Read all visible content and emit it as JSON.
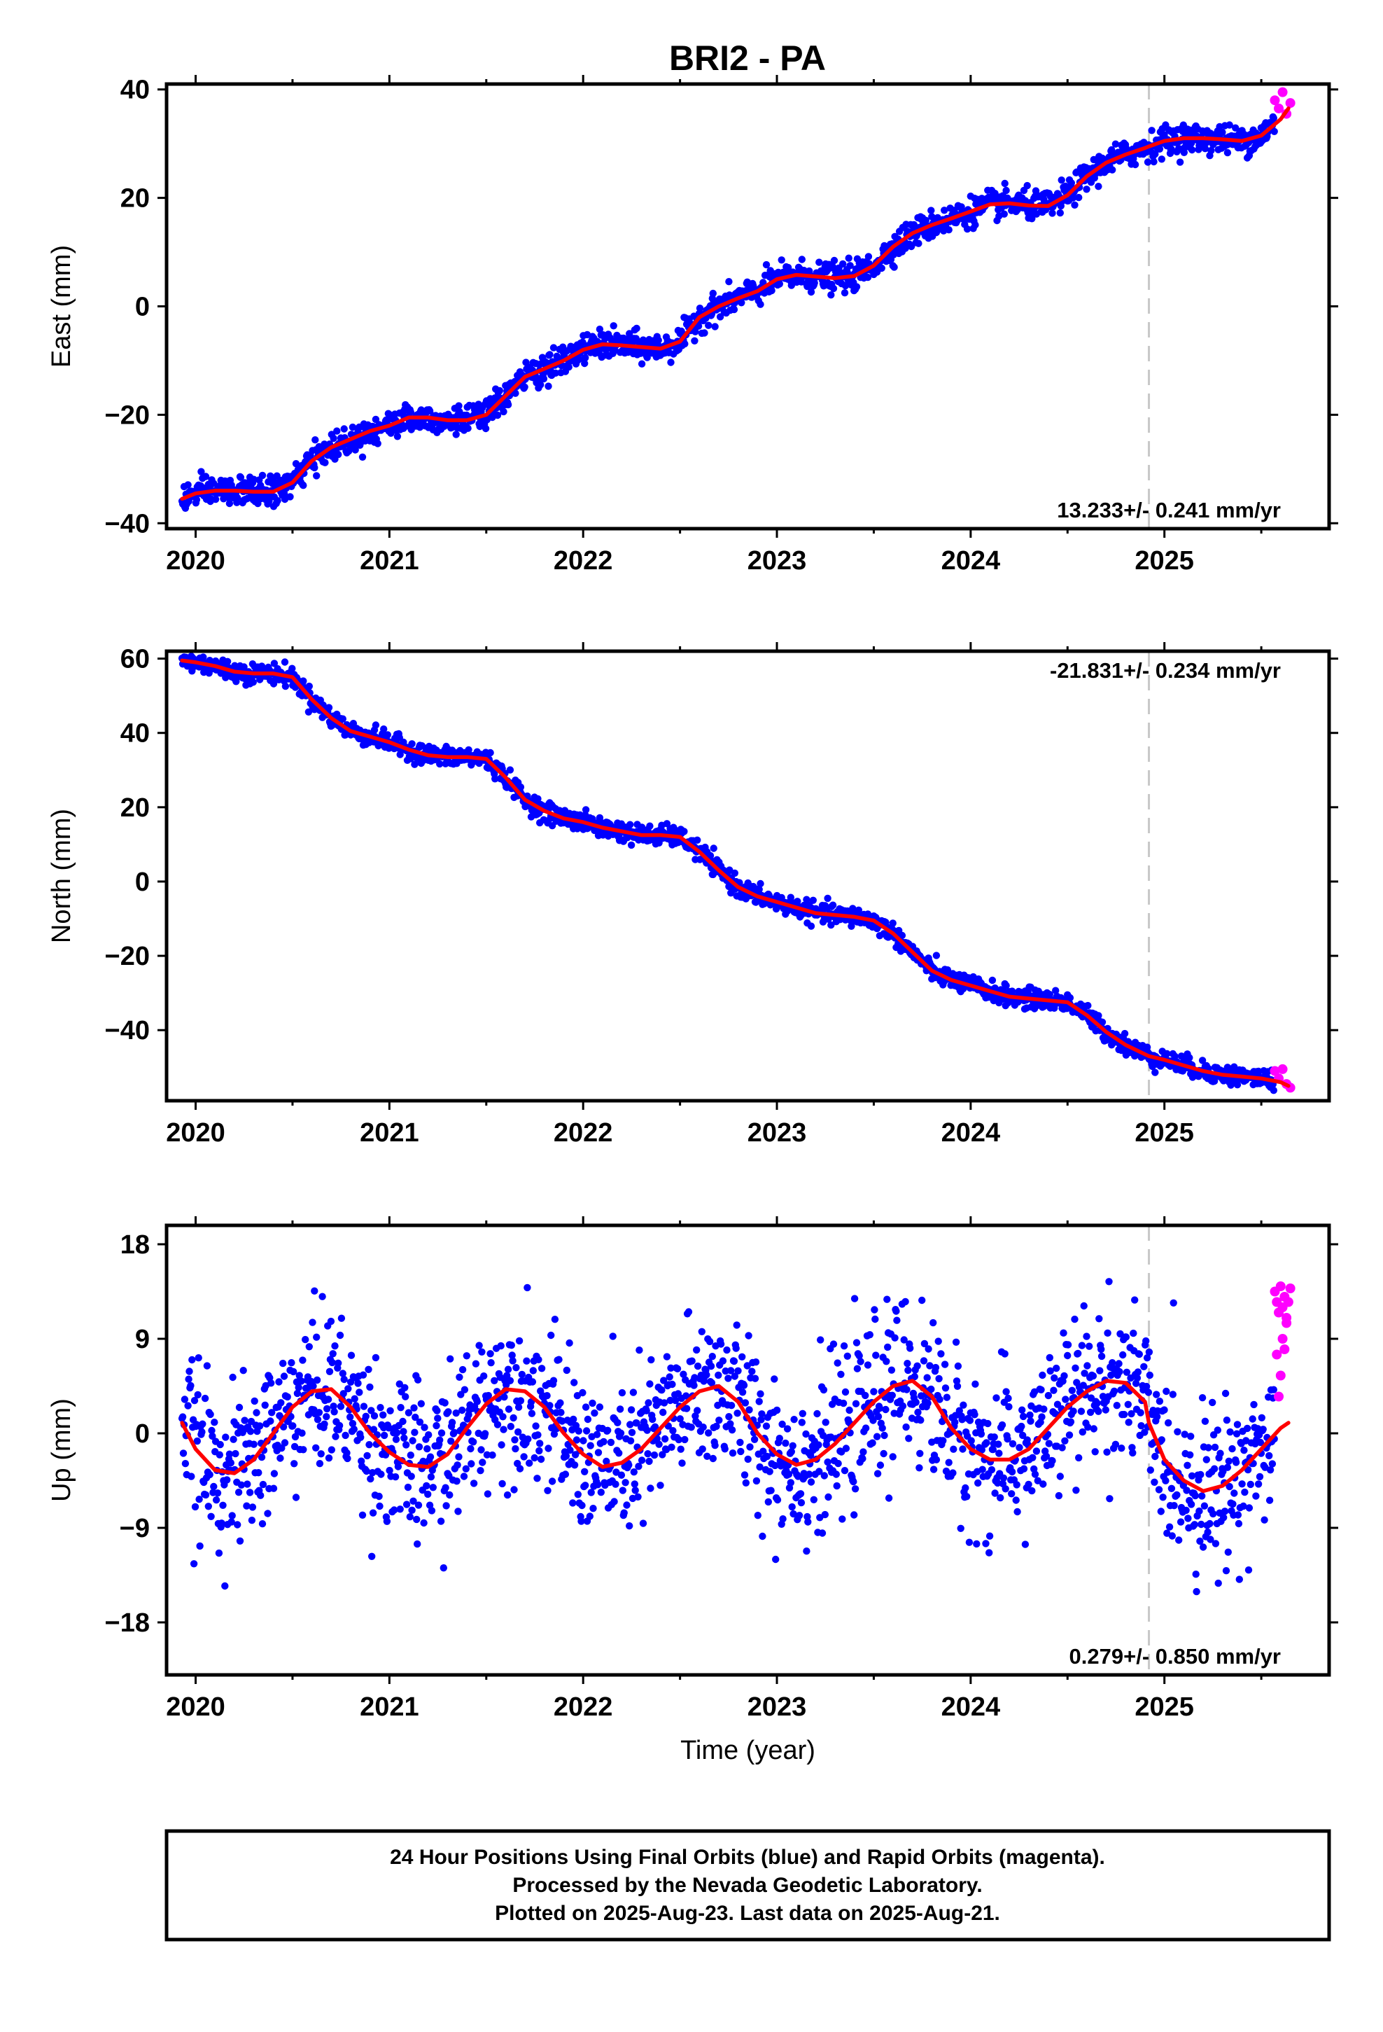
{
  "title": "BRI2 - PA",
  "colors": {
    "final": "#0000ff",
    "rapid": "#ff00ff",
    "model": "#ff0000",
    "break_line": "#c8c8c8"
  },
  "break_epoch": 2024.92,
  "chart_data": [
    {
      "type": "scatter",
      "ylabel": "East (mm)",
      "xlim": [
        2019.85,
        2025.85
      ],
      "ylim": [
        -41,
        41
      ],
      "yticks": [
        -40,
        -20,
        0,
        20,
        40
      ],
      "ytick_labels": [
        "−40",
        "−20",
        "0",
        "20",
        "40"
      ],
      "xticks": [
        2020,
        2021,
        2022,
        2023,
        2024,
        2025
      ],
      "xtick_labels": [
        "2020",
        "2021",
        "2022",
        "2023",
        "2024",
        "2025"
      ],
      "rate_label": "13.233+/- 0.241 mm/yr",
      "rate_position": "bottom-right",
      "model": {
        "x": [
          2019.93,
          2020.0,
          2020.1,
          2020.2,
          2020.3,
          2020.4,
          2020.5,
          2020.6,
          2020.7,
          2020.8,
          2020.9,
          2021.0,
          2021.1,
          2021.2,
          2021.3,
          2021.4,
          2021.5,
          2021.6,
          2021.7,
          2021.8,
          2021.9,
          2022.0,
          2022.1,
          2022.2,
          2022.3,
          2022.4,
          2022.5,
          2022.6,
          2022.7,
          2022.8,
          2022.9,
          2023.0,
          2023.1,
          2023.2,
          2023.3,
          2023.4,
          2023.5,
          2023.6,
          2023.7,
          2023.8,
          2023.9,
          2024.0,
          2024.1,
          2024.2,
          2024.3,
          2024.4,
          2024.5,
          2024.6,
          2024.7,
          2024.8,
          2024.9,
          2024.92,
          2025.0,
          2025.1,
          2025.2,
          2025.3,
          2025.4,
          2025.5,
          2025.6,
          2025.64
        ],
        "y": [
          -35.5,
          -34.5,
          -34.0,
          -34.0,
          -34.2,
          -34.2,
          -32.5,
          -28.5,
          -26.0,
          -24.5,
          -23.0,
          -22.0,
          -20.5,
          -20.5,
          -21.0,
          -21.0,
          -20.0,
          -16.5,
          -13.0,
          -11.5,
          -10.0,
          -8.0,
          -7.0,
          -7.2,
          -7.5,
          -7.8,
          -6.5,
          -2.0,
          0.0,
          1.5,
          2.8,
          5.0,
          5.8,
          5.5,
          5.2,
          5.6,
          7.5,
          11.0,
          13.5,
          15.0,
          16.2,
          17.5,
          18.8,
          19.0,
          18.6,
          18.5,
          20.5,
          24.0,
          26.5,
          28.0,
          29.2,
          29.5,
          30.5,
          31.0,
          31.0,
          30.8,
          30.5,
          31.5,
          34.5,
          36.5
        ]
      },
      "rapid": {
        "x": [
          2025.57,
          2025.59,
          2025.61,
          2025.63,
          2025.65
        ],
        "y": [
          38,
          36.5,
          39.5,
          35.5,
          37.5
        ]
      }
    },
    {
      "type": "scatter",
      "ylabel": "North (mm)",
      "xlim": [
        2019.85,
        2025.85
      ],
      "ylim": [
        -59,
        62
      ],
      "yticks": [
        -40,
        -20,
        0,
        20,
        40,
        60
      ],
      "ytick_labels": [
        "−40",
        "−20",
        "0",
        "20",
        "40",
        "60"
      ],
      "xticks": [
        2020,
        2021,
        2022,
        2023,
        2024,
        2025
      ],
      "xtick_labels": [
        "2020",
        "2021",
        "2022",
        "2023",
        "2024",
        "2025"
      ],
      "rate_label": "-21.831+/- 0.234 mm/yr",
      "rate_position": "top-right",
      "model": {
        "x": [
          2019.93,
          2020.0,
          2020.1,
          2020.2,
          2020.3,
          2020.4,
          2020.5,
          2020.6,
          2020.7,
          2020.8,
          2020.9,
          2021.0,
          2021.1,
          2021.2,
          2021.3,
          2021.4,
          2021.5,
          2021.6,
          2021.7,
          2021.8,
          2021.9,
          2022.0,
          2022.1,
          2022.2,
          2022.3,
          2022.4,
          2022.5,
          2022.6,
          2022.7,
          2022.8,
          2022.9,
          2023.0,
          2023.1,
          2023.2,
          2023.3,
          2023.4,
          2023.5,
          2023.6,
          2023.7,
          2023.8,
          2023.9,
          2024.0,
          2024.1,
          2024.2,
          2024.3,
          2024.4,
          2024.5,
          2024.6,
          2024.7,
          2024.8,
          2024.9,
          2024.92,
          2025.0,
          2025.1,
          2025.2,
          2025.3,
          2025.4,
          2025.5,
          2025.6,
          2025.64
        ],
        "y": [
          59.5,
          59.0,
          58.0,
          56.5,
          56.0,
          56.0,
          55.0,
          49.0,
          44.0,
          40.5,
          39.0,
          37.5,
          35.5,
          34.0,
          33.5,
          33.5,
          33.0,
          28.0,
          22.0,
          19.0,
          17.0,
          16.0,
          14.5,
          13.5,
          12.5,
          12.5,
          12.0,
          8.0,
          3.0,
          -1.5,
          -4.0,
          -5.5,
          -7.0,
          -8.5,
          -9.0,
          -9.5,
          -10.5,
          -14.0,
          -19.0,
          -24.0,
          -26.5,
          -28.0,
          -29.5,
          -31.0,
          -31.5,
          -32.0,
          -32.5,
          -36.0,
          -40.5,
          -44.0,
          -46.5,
          -47.0,
          -48.0,
          -49.5,
          -51.0,
          -52.0,
          -52.5,
          -53.0,
          -54.0,
          -55.0
        ]
      },
      "rapid": {
        "x": [
          2025.57,
          2025.59,
          2025.61,
          2025.63,
          2025.65
        ],
        "y": [
          -51,
          -53,
          -50.5,
          -54.5,
          -55.5
        ]
      }
    },
    {
      "type": "scatter",
      "ylabel": "Up (mm)",
      "xlabel": "Time (year)",
      "xlim": [
        2019.85,
        2025.85
      ],
      "ylim": [
        -23,
        19.8
      ],
      "yticks": [
        -18,
        -9,
        0,
        9,
        18
      ],
      "ytick_labels": [
        "−18",
        "−9",
        "0",
        "9",
        "18"
      ],
      "xticks": [
        2020,
        2021,
        2022,
        2023,
        2024,
        2025
      ],
      "xtick_labels": [
        "2020",
        "2021",
        "2022",
        "2023",
        "2024",
        "2025"
      ],
      "rate_label": "0.279+/- 0.850 mm/yr",
      "rate_position": "bottom-right",
      "model": {
        "x": [
          2019.93,
          2020.0,
          2020.1,
          2020.2,
          2020.3,
          2020.4,
          2020.5,
          2020.6,
          2020.7,
          2020.8,
          2020.9,
          2021.0,
          2021.1,
          2021.2,
          2021.3,
          2021.4,
          2021.5,
          2021.6,
          2021.7,
          2021.8,
          2021.9,
          2022.0,
          2022.1,
          2022.2,
          2022.3,
          2022.4,
          2022.5,
          2022.6,
          2022.7,
          2022.8,
          2022.9,
          2023.0,
          2023.1,
          2023.2,
          2023.3,
          2023.4,
          2023.5,
          2023.6,
          2023.7,
          2023.8,
          2023.9,
          2024.0,
          2024.1,
          2024.2,
          2024.3,
          2024.4,
          2024.5,
          2024.6,
          2024.7,
          2024.8,
          2024.9,
          2024.92,
          2025.0,
          2025.1,
          2025.2,
          2025.3,
          2025.4,
          2025.5,
          2025.6,
          2025.64
        ],
        "y": [
          1.0,
          -1.5,
          -3.5,
          -3.8,
          -2.5,
          0.0,
          2.5,
          4.0,
          4.2,
          2.5,
          0.0,
          -1.8,
          -3.0,
          -3.2,
          -2.0,
          0.5,
          2.8,
          4.2,
          4.0,
          2.5,
          0.0,
          -2.0,
          -3.2,
          -2.8,
          -1.5,
          0.5,
          2.5,
          4.0,
          4.5,
          3.0,
          0.0,
          -2.0,
          -3.0,
          -2.5,
          -1.0,
          1.0,
          3.0,
          4.5,
          5.0,
          3.5,
          0.5,
          -1.5,
          -2.5,
          -2.5,
          -1.5,
          0.5,
          2.5,
          4.0,
          5.0,
          4.8,
          3.0,
          1.0,
          -2.5,
          -4.5,
          -5.5,
          -5.0,
          -3.5,
          -1.5,
          0.5,
          1.0
        ]
      },
      "rapid": {
        "x": [
          2025.57,
          2025.58,
          2025.59,
          2025.6,
          2025.61,
          2025.62,
          2025.63,
          2025.64,
          2025.65,
          2025.58,
          2025.6,
          2025.62,
          2025.59,
          2025.63,
          2025.61
        ],
        "y": [
          13.5,
          12.5,
          11.5,
          14.0,
          12.0,
          13.0,
          11.0,
          12.5,
          13.8,
          7.5,
          5.5,
          8.0,
          3.5,
          10.5,
          9.0
        ]
      }
    }
  ],
  "footer": {
    "line1": "24 Hour Positions Using Final Orbits (blue) and Rapid Orbits (magenta).",
    "line2": "Processed by the Nevada Geodetic Laboratory.",
    "line3": "Plotted on 2025-Aug-23. Last data on 2025-Aug-21."
  }
}
